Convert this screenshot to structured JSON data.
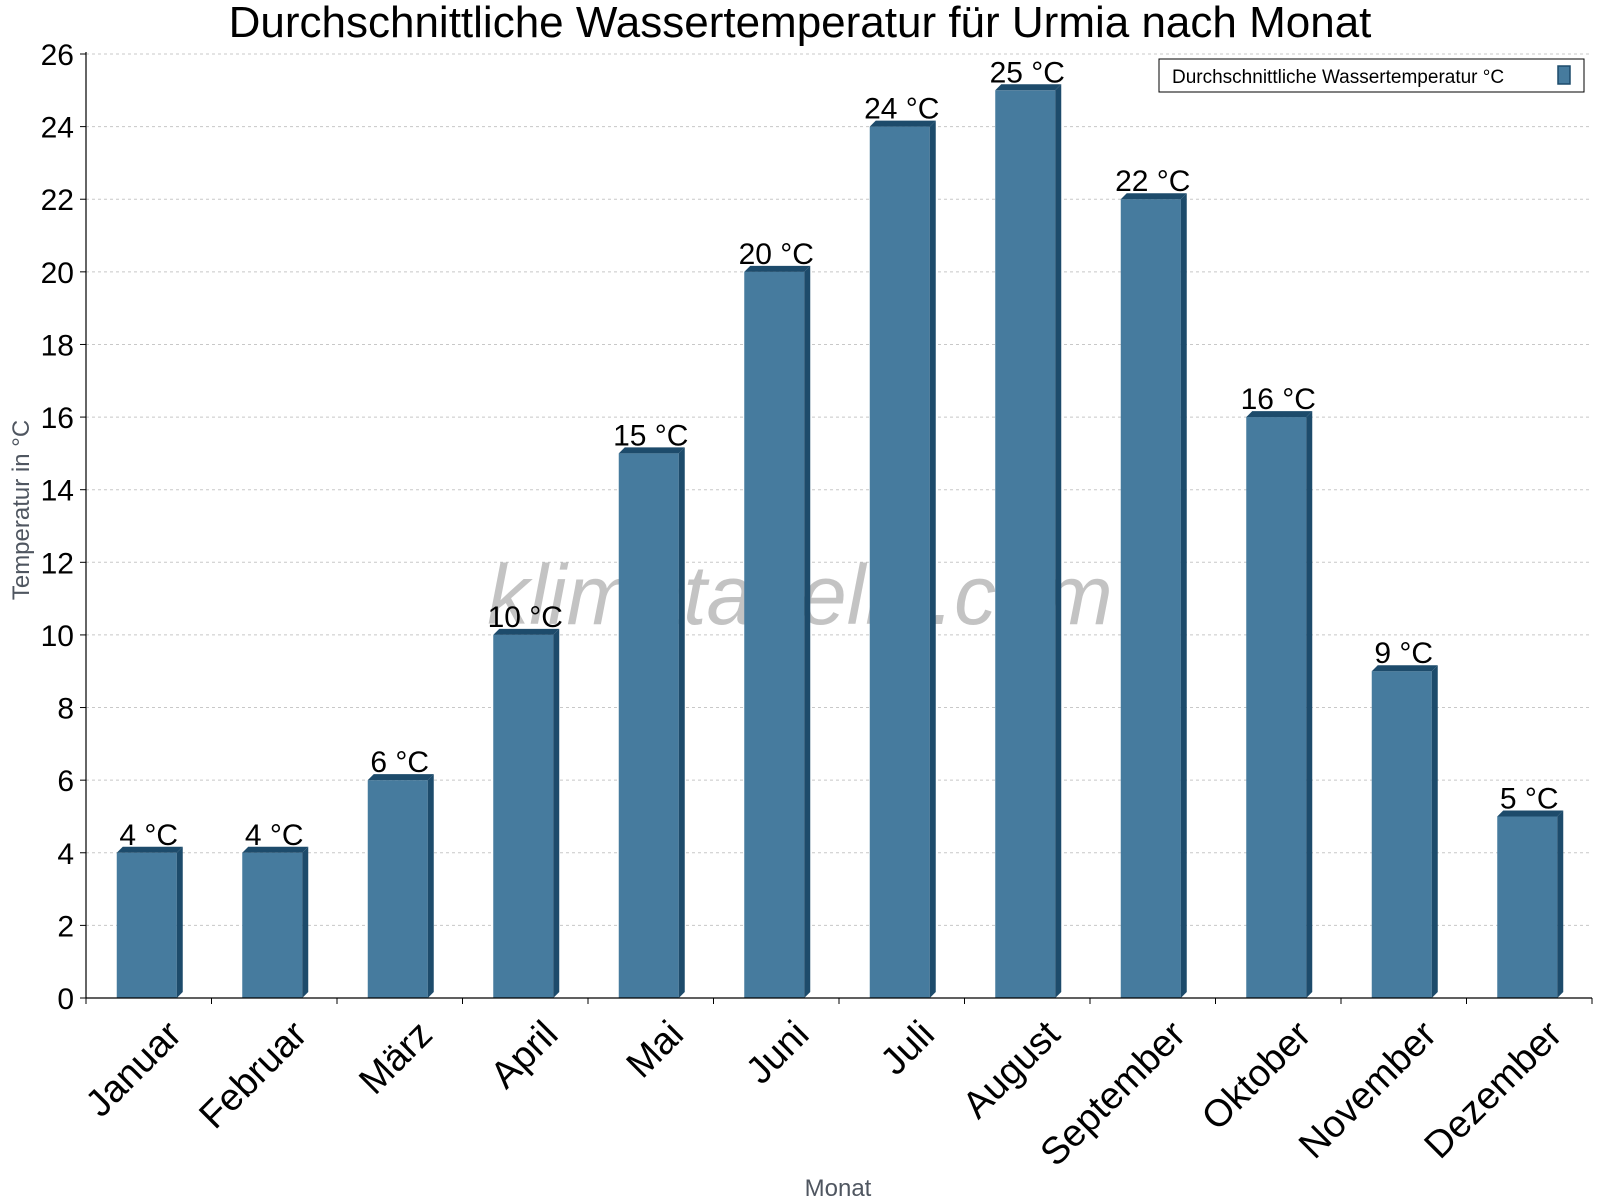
{
  "colors": {
    "bar_face": "#467b9e",
    "bar_side": "#1d4b6b",
    "bar_top": "#1d4b6b",
    "grid": "#c8c8c8",
    "axis": "#000000"
  },
  "watermark": "klimatabelle.com",
  "chart_data": {
    "type": "bar",
    "title": "Durchschnittliche Wassertemperatur für Urmia nach Monat",
    "xlabel": "Monat",
    "ylabel": "Temperatur in °C",
    "categories": [
      "Januar",
      "Februar",
      "März",
      "April",
      "Mai",
      "Juni",
      "Juli",
      "August",
      "September",
      "Oktober",
      "November",
      "Dezember"
    ],
    "series": [
      {
        "name": "Durchschnittliche Wassertemperatur °C",
        "values": [
          4,
          4,
          6,
          10,
          15,
          20,
          24,
          25,
          22,
          16,
          9,
          5
        ],
        "labels": [
          "4 °C",
          "4 °C",
          "6 °C",
          "10 °C",
          "15 °C",
          "20 °C",
          "24 °C",
          "25 °C",
          "22 °C",
          "16 °C",
          "9 °C",
          "5 °C"
        ]
      }
    ],
    "ylim": [
      0,
      26
    ],
    "yticks": [
      0,
      2,
      4,
      6,
      8,
      10,
      12,
      14,
      16,
      18,
      20,
      22,
      24,
      26
    ],
    "grid": true,
    "legend_position": "top-right"
  }
}
